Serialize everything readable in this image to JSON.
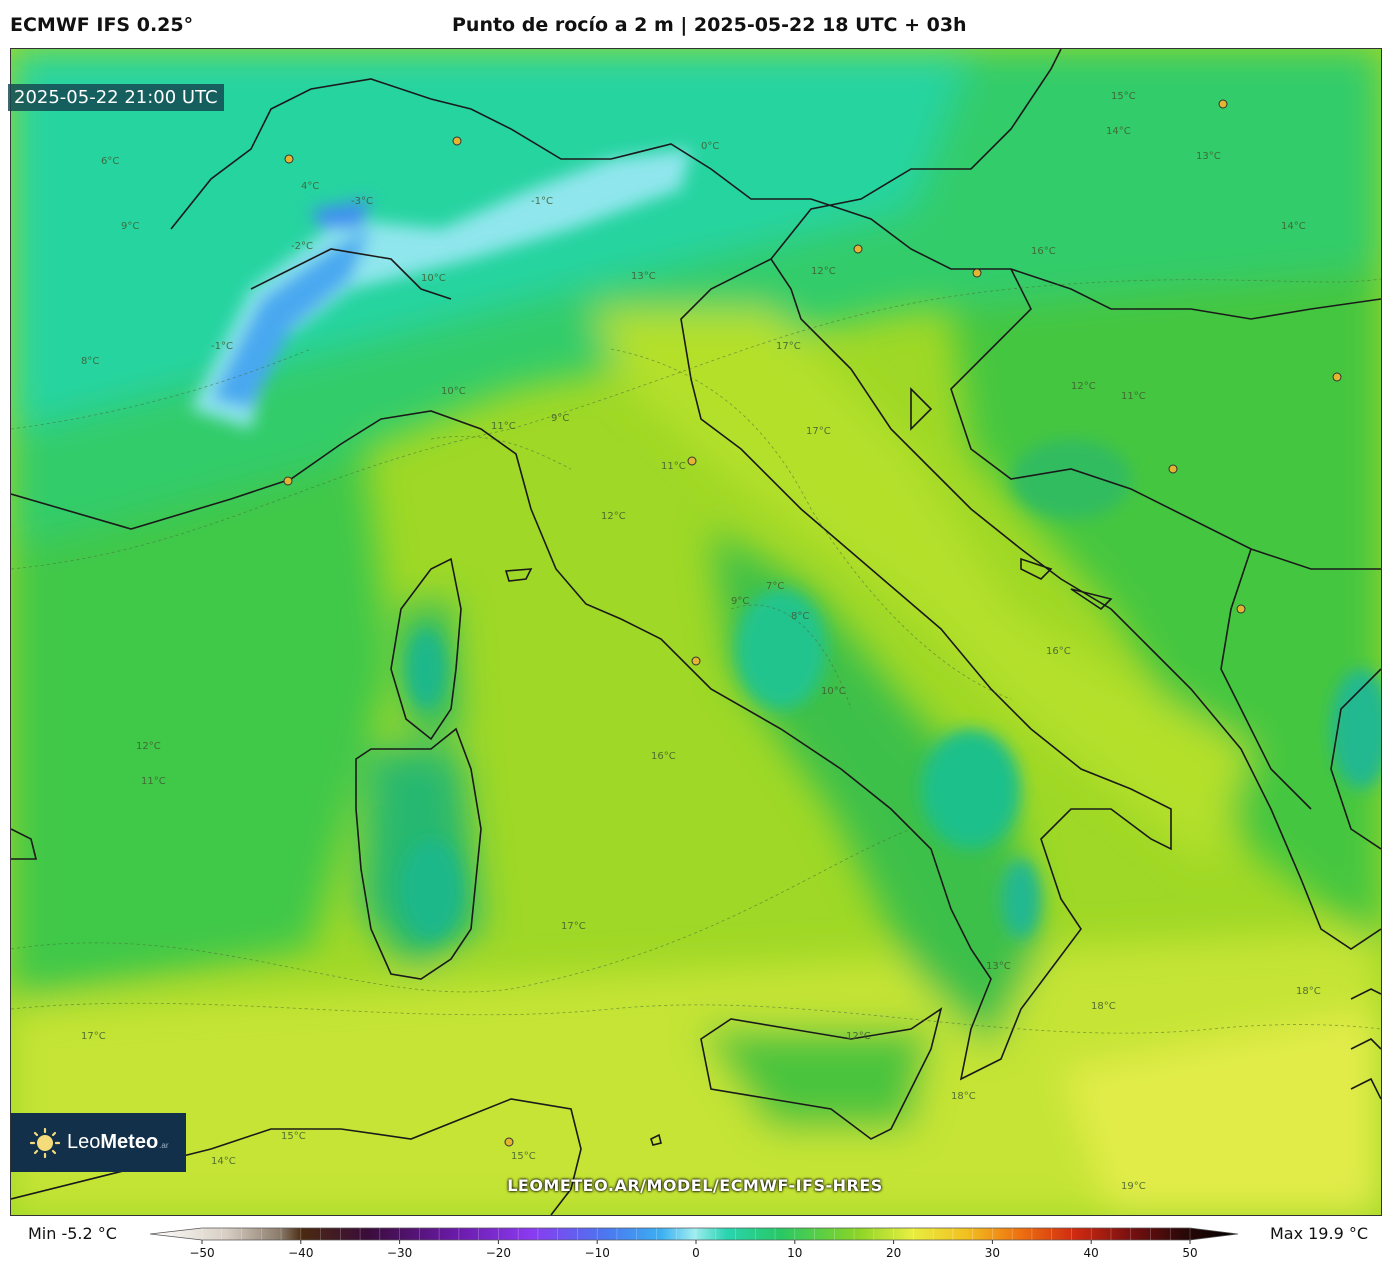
{
  "header": {
    "model": "ECMWF IFS 0.25°",
    "title": "Punto de rocío a 2 m | 2025-05-22 18 UTC + 03h"
  },
  "map": {
    "valid_time": "2025-05-22 21:00 UTC",
    "watermark": "LEOMETEO.AR/MODEL/ECMWF-IFS-HRES",
    "logo": {
      "name_light": "Leo",
      "name_bold": "Meteo",
      "suffix": ".ar",
      "icon": "sun-icon"
    },
    "contour_labels": [
      {
        "text": "-2°C"
      },
      {
        "text": "-1°C"
      },
      {
        "text": "-3°C"
      },
      {
        "text": "-1°C"
      },
      {
        "text": "0°C"
      },
      {
        "text": "4°C"
      },
      {
        "text": "6°C"
      },
      {
        "text": "8°C"
      },
      {
        "text": "9°C"
      },
      {
        "text": "10°C"
      },
      {
        "text": "12°C"
      },
      {
        "text": "13°C"
      },
      {
        "text": "14°C"
      },
      {
        "text": "15°C"
      },
      {
        "text": "16°C"
      },
      {
        "text": "17°C"
      },
      {
        "text": "18°C"
      },
      {
        "text": "11°C"
      },
      {
        "text": "10°C"
      },
      {
        "text": "9°C"
      },
      {
        "text": "12°C"
      },
      {
        "text": "11°C"
      },
      {
        "text": "17°C"
      },
      {
        "text": "16°C"
      },
      {
        "text": "12°C"
      },
      {
        "text": "11°C"
      },
      {
        "text": "10°C"
      },
      {
        "text": "9°C"
      },
      {
        "text": "8°C"
      },
      {
        "text": "7°C"
      },
      {
        "text": "12°C"
      },
      {
        "text": "11°C"
      },
      {
        "text": "17°C"
      },
      {
        "text": "18°C"
      },
      {
        "text": "15°C"
      },
      {
        "text": "14°C"
      },
      {
        "text": "13°C"
      },
      {
        "text": "12°C"
      },
      {
        "text": "16°C"
      },
      {
        "text": "17°C"
      },
      {
        "text": "18°C"
      },
      {
        "text": "19°C"
      },
      {
        "text": "15°C"
      },
      {
        "text": "13°C"
      },
      {
        "text": "14°C"
      }
    ]
  },
  "colorbar": {
    "min_label": "Min -5.2 °C",
    "max_label": "Max 19.9 °C",
    "range": [
      -50,
      50
    ],
    "ticks": [
      "−50",
      "−40",
      "−30",
      "−20",
      "−10",
      "0",
      "10",
      "20",
      "30",
      "40",
      "50"
    ],
    "unit": "°C"
  }
}
